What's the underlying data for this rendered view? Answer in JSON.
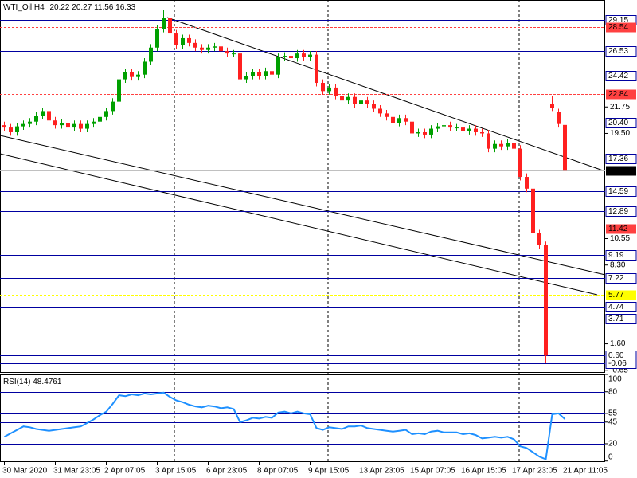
{
  "chart_data": {
    "type": "candlestick",
    "title": "WTI_Oil,H4",
    "categories": [
      "30 Mar 2020",
      null,
      null,
      null,
      null,
      null,
      null,
      null,
      "31 Mar 23:05",
      null,
      null,
      null,
      null,
      null,
      null,
      null,
      "2 Apr 07:05",
      null,
      null,
      null,
      null,
      null,
      null,
      null,
      "3 Apr 15:05",
      null,
      null,
      null,
      null,
      null,
      null,
      null,
      "6 Apr 23:05",
      null,
      null,
      null,
      null,
      null,
      null,
      null,
      "8 Apr 07:05",
      null,
      null,
      null,
      null,
      null,
      null,
      null,
      "9 Apr 15:05",
      null,
      null,
      null,
      null,
      null,
      null,
      null,
      "13 Apr 23:05",
      null,
      null,
      null,
      null,
      null,
      null,
      null,
      "15 Apr 07:05",
      null,
      null,
      null,
      null,
      null,
      null,
      null,
      "16 Apr 15:05",
      null,
      null,
      null,
      null,
      null,
      null,
      null,
      "17 Apr 23:05",
      null,
      null,
      null,
      null,
      null,
      null,
      null,
      "21 Apr 11:05"
    ],
    "open": [
      20.2,
      20.0,
      19.6,
      20.1,
      20.3,
      20.5,
      21.0,
      21.4,
      20.6,
      20.2,
      20.4,
      20.0,
      20.3,
      19.9,
      20.3,
      20.5,
      20.9,
      21.4,
      22.2,
      24.1,
      24.7,
      24.3,
      24.5,
      25.6,
      26.8,
      28.4,
      29.3,
      28.0,
      27.0,
      27.6,
      27.2,
      26.8,
      26.6,
      26.8,
      26.9,
      26.5,
      26.3,
      26.3,
      24.1,
      24.4,
      24.7,
      24.4,
      24.8,
      24.5,
      26.0,
      26.1,
      25.9,
      26.3,
      26.0,
      26.2,
      23.8,
      23.1,
      23.4,
      22.7,
      22.3,
      22.6,
      22.0,
      22.3,
      22.0,
      21.6,
      21.2,
      20.9,
      20.4,
      20.8,
      20.5,
      19.5,
      19.6,
      19.4,
      19.9,
      20.1,
      20.2,
      20.0,
      20.0,
      19.7,
      19.9,
      19.6,
      19.5,
      18.2,
      18.6,
      18.4,
      18.7,
      18.2,
      15.8,
      14.8,
      11.0,
      10.0,
      22.0,
      21.3,
      20.22
    ],
    "high": [
      20.5,
      20.3,
      20.4,
      20.6,
      20.8,
      21.3,
      21.7,
      21.7,
      20.9,
      20.7,
      20.7,
      20.6,
      20.6,
      20.6,
      20.8,
      21.2,
      21.7,
      22.5,
      24.5,
      25.0,
      25.0,
      24.8,
      25.9,
      27.1,
      28.7,
      30.0,
      29.6,
      28.3,
      27.9,
      27.9,
      27.5,
      27.1,
      27.1,
      27.2,
      27.2,
      26.8,
      26.6,
      26.6,
      24.7,
      25.0,
      25.0,
      25.1,
      25.1,
      26.3,
      26.4,
      26.4,
      26.6,
      26.6,
      26.5,
      26.5,
      24.1,
      23.7,
      23.7,
      23.0,
      22.9,
      22.9,
      22.6,
      22.6,
      22.3,
      21.9,
      21.5,
      21.2,
      21.1,
      21.1,
      20.8,
      19.9,
      19.9,
      20.2,
      20.4,
      20.5,
      20.5,
      20.3,
      20.3,
      20.2,
      20.2,
      19.9,
      19.8,
      18.9,
      18.9,
      19.0,
      19.0,
      18.5,
      16.1,
      15.1,
      11.3,
      10.3,
      22.7,
      21.6,
      20.27
    ],
    "low": [
      19.7,
      19.3,
      19.3,
      19.8,
      20.0,
      20.2,
      20.7,
      20.3,
      19.9,
      19.9,
      19.7,
      19.7,
      19.6,
      19.6,
      20.0,
      20.2,
      20.6,
      21.1,
      21.9,
      23.8,
      24.0,
      24.0,
      24.2,
      25.3,
      26.5,
      28.1,
      27.7,
      26.7,
      26.7,
      26.9,
      26.5,
      26.3,
      26.3,
      26.5,
      26.2,
      26.0,
      26.0,
      23.8,
      23.8,
      24.1,
      24.1,
      24.1,
      24.2,
      24.2,
      25.7,
      25.6,
      25.6,
      25.7,
      25.7,
      23.5,
      22.8,
      22.8,
      22.4,
      22.0,
      22.0,
      21.7,
      21.7,
      21.7,
      21.3,
      20.9,
      20.6,
      20.1,
      20.1,
      20.2,
      19.2,
      19.2,
      19.1,
      19.1,
      19.6,
      19.8,
      19.7,
      19.7,
      19.4,
      19.4,
      19.3,
      19.2,
      17.9,
      17.9,
      18.1,
      18.1,
      17.9,
      15.5,
      14.5,
      10.7,
      9.7,
      -0.06,
      21.4,
      20.0,
      11.56
    ],
    "close": [
      20.0,
      19.6,
      20.1,
      20.3,
      20.5,
      21.0,
      21.4,
      20.6,
      20.2,
      20.4,
      20.0,
      20.3,
      19.9,
      20.3,
      20.5,
      20.9,
      21.4,
      22.2,
      24.1,
      24.7,
      24.3,
      24.5,
      25.6,
      26.8,
      28.4,
      29.3,
      28.0,
      27.0,
      27.6,
      27.2,
      26.8,
      26.6,
      26.8,
      26.9,
      26.5,
      26.3,
      26.3,
      24.1,
      24.4,
      24.7,
      24.4,
      24.8,
      24.5,
      26.0,
      26.1,
      25.9,
      26.3,
      26.0,
      26.2,
      23.8,
      23.1,
      23.4,
      22.7,
      22.3,
      22.6,
      22.0,
      22.3,
      22.0,
      21.6,
      21.2,
      20.9,
      20.4,
      20.8,
      20.5,
      19.5,
      19.6,
      19.4,
      19.9,
      20.1,
      20.2,
      20.0,
      20.0,
      19.7,
      19.9,
      19.6,
      19.5,
      18.2,
      18.6,
      18.4,
      18.7,
      18.2,
      15.8,
      14.8,
      11.0,
      10.0,
      0.6,
      21.7,
      20.3,
      16.33
    ],
    "up_color": "#00a000",
    "down_color": "#ff2020",
    "ylim": [
      -0.87,
      30.85
    ],
    "yticks": [
      {
        "value": 21.75,
        "label": "21.75"
      },
      {
        "value": 19.5,
        "label": "19.50"
      },
      {
        "value": 10.55,
        "label": "10.55"
      },
      {
        "value": 8.3,
        "label": "8.30"
      },
      {
        "value": 1.6,
        "label": "1.60"
      },
      {
        "value": -0.65,
        "label": "-0.65"
      }
    ],
    "levels": [
      {
        "value": 29.15,
        "label": "29.15",
        "color": "#0000a0",
        "dashed": false
      },
      {
        "value": 28.54,
        "label": "28.54",
        "color": "#ff4040",
        "dashed": true
      },
      {
        "value": 26.53,
        "label": "26.53",
        "color": "#0000a0",
        "dashed": false
      },
      {
        "value": 24.42,
        "label": "24.42",
        "color": "#0000a0",
        "dashed": false
      },
      {
        "value": 22.84,
        "label": "22.84",
        "color": "#ff4040",
        "dashed": true
      },
      {
        "value": 20.4,
        "label": "20.40",
        "color": "#0000a0",
        "dashed": false
      },
      {
        "value": 17.36,
        "label": "17.36",
        "color": "#0000a0",
        "dashed": false
      },
      {
        "value": 16.33,
        "label": "16.33",
        "color": "#000000",
        "dashed": false
      },
      {
        "value": 14.59,
        "label": "14.59",
        "color": "#0000a0",
        "dashed": false
      },
      {
        "value": 12.89,
        "label": "12.89",
        "color": "#0000a0",
        "dashed": false
      },
      {
        "value": 11.42,
        "label": "11.42",
        "color": "#ff4040",
        "dashed": true
      },
      {
        "value": 9.19,
        "label": "9.19",
        "color": "#0000a0",
        "dashed": false
      },
      {
        "value": 7.22,
        "label": "7.22",
        "color": "#0000a0",
        "dashed": false
      },
      {
        "value": 5.77,
        "label": "5.77",
        "color": "#ffff00",
        "dashed": true
      },
      {
        "value": 4.74,
        "label": "4.74",
        "color": "#0000a0",
        "dashed": false
      },
      {
        "value": 3.71,
        "label": "3.71",
        "color": "#0000a0",
        "dashed": false
      },
      {
        "value": 0.6,
        "label": "0.60",
        "color": "#0000a0",
        "dashed": false
      },
      {
        "value": -0.06,
        "label": "-0.06",
        "color": "#0000a0",
        "dashed": false
      }
    ],
    "rsi": {
      "name": "RSI(14)",
      "color": "#1e90ff",
      "ylim": [
        0,
        100
      ],
      "yticks": [
        100,
        80,
        55,
        45,
        20,
        0
      ],
      "levels": [
        80,
        55,
        45,
        20
      ],
      "values": [
        28,
        32,
        36,
        40,
        39,
        37,
        36,
        35,
        36,
        37,
        38,
        39,
        40,
        44,
        48,
        53,
        57,
        66,
        76,
        75,
        77,
        76,
        78,
        77,
        78,
        79,
        74,
        70,
        68,
        65,
        63,
        62,
        64,
        63,
        61,
        62,
        60,
        45,
        47,
        50,
        49,
        51,
        50,
        56,
        57,
        55,
        57,
        55,
        54,
        38,
        36,
        39,
        38,
        37,
        40,
        40,
        41,
        38,
        37,
        36,
        35,
        34,
        35,
        36,
        31,
        32,
        31,
        34,
        35,
        33,
        33,
        33,
        31,
        32,
        30,
        26,
        27,
        28,
        27,
        28,
        25,
        17,
        15,
        10,
        5,
        2,
        54,
        55,
        48.4761
      ]
    }
  }
}
